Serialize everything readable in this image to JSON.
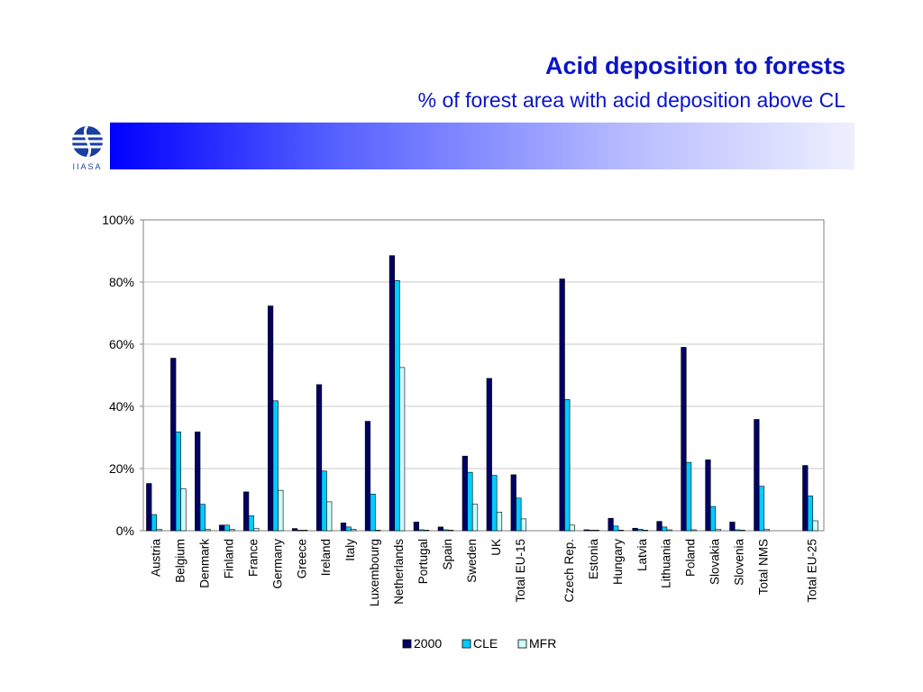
{
  "slide": {
    "title": "Acid deposition to forests",
    "subtitle": "% of forest area with acid deposition above CL",
    "logo_text": "IIASA",
    "banner_color": "#0000ff"
  },
  "chart_data": {
    "type": "bar",
    "categories": [
      "Austria",
      "Belgium",
      "Denmark",
      "Finland",
      "France",
      "Germany",
      "Greece",
      "Ireland",
      "Italy",
      "Luxembourg",
      "Netherlands",
      "Portugal",
      "Spain",
      "Sweden",
      "UK",
      "Total EU-15",
      "",
      "Czech Rep.",
      "Estonia",
      "Hungary",
      "Latvia",
      "Lithuania",
      "Poland",
      "Slovakia",
      "Slovenia",
      "Total NMS",
      "",
      "Total EU-25"
    ],
    "series": [
      {
        "name": "2000",
        "color": "#000066",
        "values": [
          15.2,
          55.5,
          31.8,
          1.8,
          12.5,
          72.3,
          0.7,
          47,
          2.5,
          35.2,
          88.5,
          2.8,
          1.2,
          24,
          49,
          18,
          null,
          81,
          0.3,
          4,
          0.8,
          3,
          59,
          22.8,
          2.8,
          35.8,
          null,
          21
        ]
      },
      {
        "name": "CLE",
        "color": "#00ccff",
        "values": [
          5.2,
          31.8,
          8.5,
          1.8,
          4.8,
          41.8,
          0,
          19.2,
          1.2,
          11.8,
          80.5,
          0.3,
          0.3,
          18.8,
          17.8,
          10.5,
          null,
          42.2,
          0,
          1.5,
          0.5,
          1.2,
          22,
          7.8,
          0.3,
          14.3,
          null,
          11.2
        ]
      },
      {
        "name": "MFR",
        "color": "#ccffff",
        "values": [
          0.5,
          13.5,
          0.5,
          0.5,
          0.8,
          13,
          0,
          9.3,
          0.5,
          0,
          52.5,
          0,
          0,
          8.5,
          6,
          3.8,
          null,
          1.8,
          0,
          0.2,
          0.2,
          0.3,
          0.3,
          0.5,
          0,
          0.5,
          null,
          3.2
        ]
      }
    ],
    "yticks": [
      "0%",
      "20%",
      "40%",
      "60%",
      "80%",
      "100%"
    ],
    "ylim": [
      0,
      100
    ],
    "grid": true,
    "legend": "bottom-center"
  }
}
